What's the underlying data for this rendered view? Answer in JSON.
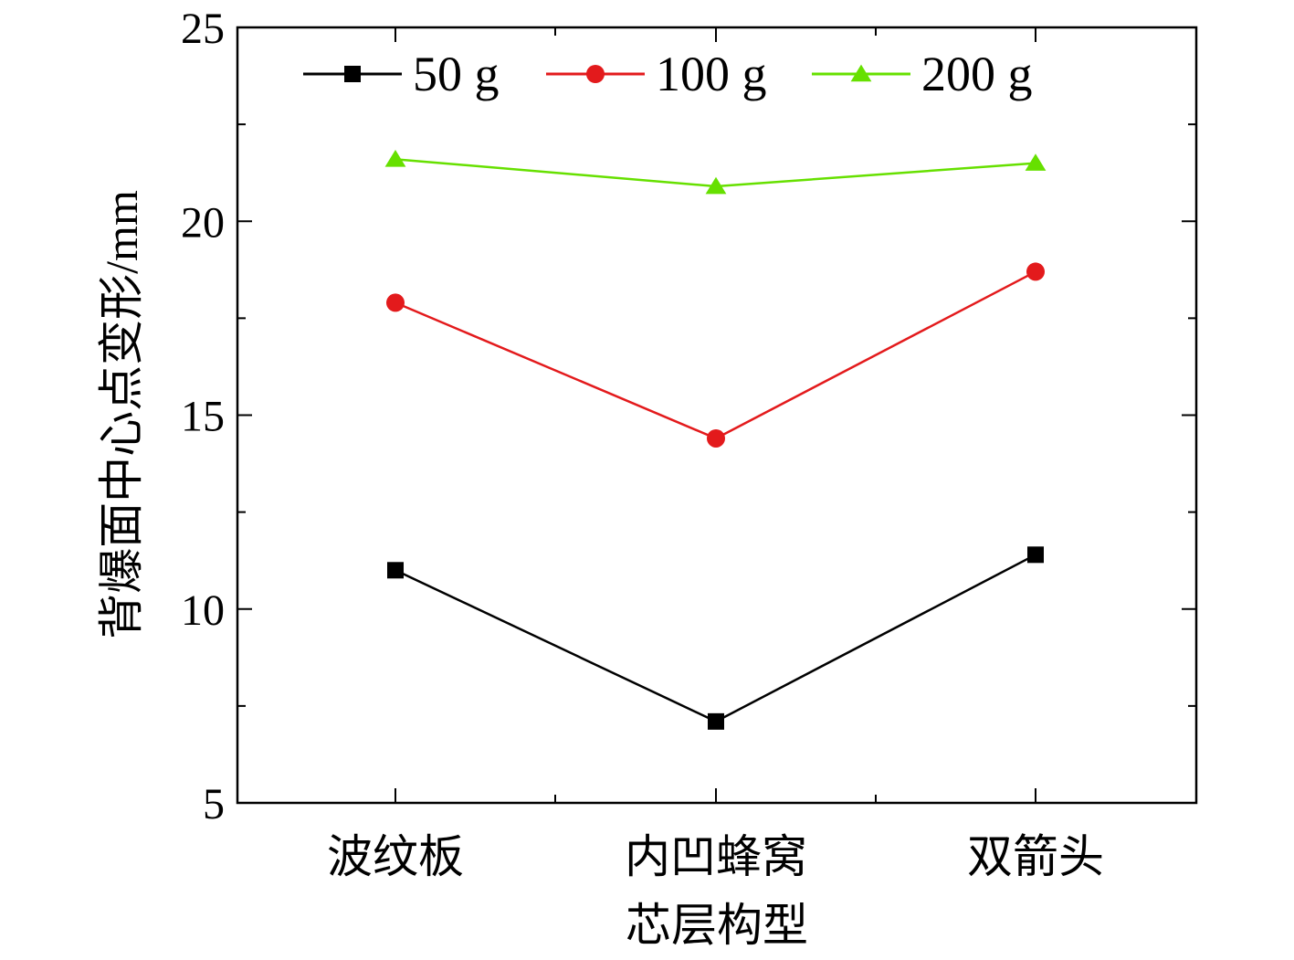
{
  "chart_data": {
    "type": "line",
    "title": "",
    "xlabel": "芯层构型",
    "ylabel": "背爆面中心点变形/mm",
    "categories": [
      "波纹板",
      "内凹蜂窝",
      "双箭头"
    ],
    "ylim": [
      5,
      25
    ],
    "yticks": [
      "5",
      "10",
      "15",
      "20",
      "25"
    ],
    "legend_position": "top",
    "series": [
      {
        "name": "50 g",
        "color": "#000000",
        "marker": "square",
        "values": [
          11.0,
          7.1,
          11.4
        ]
      },
      {
        "name": "100 g",
        "color": "#e31a1c",
        "marker": "circle",
        "values": [
          17.9,
          14.4,
          18.7
        ]
      },
      {
        "name": "200 g",
        "color": "#66e000",
        "marker": "triangle",
        "values": [
          21.6,
          20.9,
          21.5
        ]
      }
    ]
  }
}
